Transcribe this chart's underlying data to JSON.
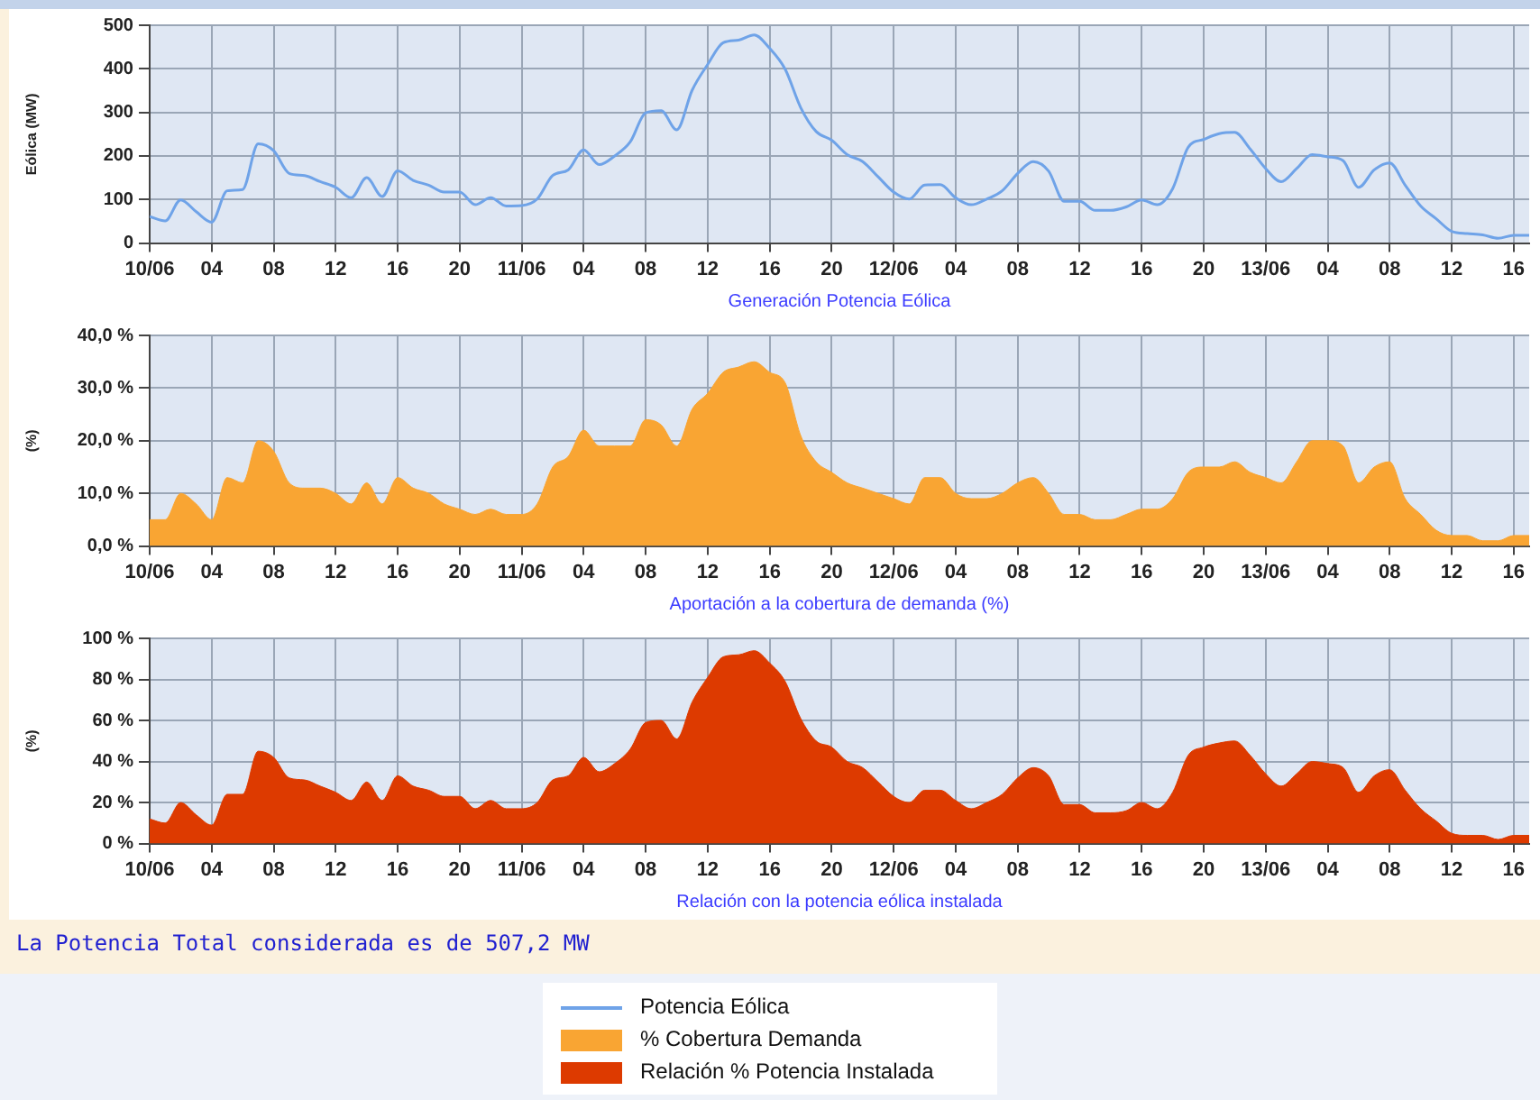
{
  "chart_data": [
    {
      "type": "line",
      "xlabel": "Generación Potencia Eólica",
      "ylabel": "Eólica (MW)",
      "x": [
        "--06-10T00:00",
        "--06-10T01:00",
        "--06-10T02:00",
        "--06-10T03:00",
        "--06-10T04:00",
        "--06-10T05:00",
        "--06-10T06:00",
        "--06-10T07:00",
        "--06-10T08:00",
        "--06-10T09:00",
        "--06-10T10:00",
        "--06-10T11:00",
        "--06-10T12:00",
        "--06-10T13:00",
        "--06-10T14:00",
        "--06-10T15:00",
        "--06-10T16:00",
        "--06-10T17:00",
        "--06-10T18:00",
        "--06-10T19:00",
        "--06-10T20:00",
        "--06-10T21:00",
        "--06-10T22:00",
        "--06-10T23:00",
        "--06-11T00:00",
        "--06-11T01:00",
        "--06-11T02:00",
        "--06-11T03:00",
        "--06-11T04:00",
        "--06-11T05:00",
        "--06-11T06:00",
        "--06-11T07:00",
        "--06-11T08:00",
        "--06-11T09:00",
        "--06-11T10:00",
        "--06-11T11:00",
        "--06-11T12:00",
        "--06-11T13:00",
        "--06-11T14:00",
        "--06-11T15:00",
        "--06-11T16:00",
        "--06-11T17:00",
        "--06-11T18:00",
        "--06-11T19:00",
        "--06-11T20:00",
        "--06-11T21:00",
        "--06-11T22:00",
        "--06-11T23:00",
        "--06-12T00:00",
        "--06-12T01:00",
        "--06-12T02:00",
        "--06-12T03:00",
        "--06-12T04:00",
        "--06-12T05:00",
        "--06-12T06:00",
        "--06-12T07:00",
        "--06-12T08:00",
        "--06-12T09:00",
        "--06-12T10:00",
        "--06-12T11:00",
        "--06-12T12:00",
        "--06-12T13:00",
        "--06-12T14:00",
        "--06-12T15:00",
        "--06-12T16:00",
        "--06-12T17:00",
        "--06-12T18:00",
        "--06-12T19:00",
        "--06-12T20:00",
        "--06-12T21:00",
        "--06-12T22:00",
        "--06-12T23:00",
        "--06-13T00:00",
        "--06-13T01:00",
        "--06-13T02:00",
        "--06-13T03:00",
        "--06-13T04:00",
        "--06-13T05:00",
        "--06-13T06:00",
        "--06-13T07:00",
        "--06-13T08:00",
        "--06-13T09:00",
        "--06-13T10:00",
        "--06-13T11:00",
        "--06-13T12:00",
        "--06-13T13:00",
        "--06-13T14:00",
        "--06-13T15:00",
        "--06-13T16:00",
        "--06-13T17:00"
      ],
      "series": [
        {
          "name": "Potencia Eólica",
          "color": "#6fa3e8",
          "values": [
            61,
            51,
            99,
            72,
            48,
            120,
            123,
            228,
            212,
            160,
            155,
            141,
            128,
            104,
            150,
            107,
            166,
            144,
            133,
            117,
            117,
            88,
            104,
            85,
            86,
            101,
            155,
            168,
            214,
            180,
            200,
            232,
            299,
            304,
            260,
            351,
            410,
            460,
            466,
            478,
            447,
            399,
            311,
            256,
            236,
            203,
            187,
            152,
            117,
            101,
            133,
            134,
            104,
            88,
            101,
            120,
            160,
            187,
            165,
            96,
            96,
            75,
            75,
            83,
            99,
            88,
            125,
            220,
            238,
            251,
            254,
            216,
            171,
            141,
            171,
            203,
            198,
            189,
            128,
            168,
            184,
            133,
            85,
            56,
            27,
            22,
            19,
            11,
            18,
            18
          ]
        }
      ],
      "xlim": [
        "--06-10T00:00",
        "--06-13T17:00"
      ],
      "xticks": [
        {
          "value": "--06-10T00:00",
          "label": "10/06"
        },
        {
          "value": "--06-10T04:00",
          "label": "04"
        },
        {
          "value": "--06-10T08:00",
          "label": "08"
        },
        {
          "value": "--06-10T12:00",
          "label": "12"
        },
        {
          "value": "--06-10T16:00",
          "label": "16"
        },
        {
          "value": "--06-10T20:00",
          "label": "20"
        },
        {
          "value": "--06-11T00:00",
          "label": "11/06"
        },
        {
          "value": "--06-11T04:00",
          "label": "04"
        },
        {
          "value": "--06-11T08:00",
          "label": "08"
        },
        {
          "value": "--06-11T12:00",
          "label": "12"
        },
        {
          "value": "--06-11T16:00",
          "label": "16"
        },
        {
          "value": "--06-11T20:00",
          "label": "20"
        },
        {
          "value": "--06-12T00:00",
          "label": "12/06"
        },
        {
          "value": "--06-12T04:00",
          "label": "04"
        },
        {
          "value": "--06-12T08:00",
          "label": "08"
        },
        {
          "value": "--06-12T12:00",
          "label": "12"
        },
        {
          "value": "--06-12T16:00",
          "label": "16"
        },
        {
          "value": "--06-12T20:00",
          "label": "20"
        },
        {
          "value": "--06-13T00:00",
          "label": "13/06"
        },
        {
          "value": "--06-13T04:00",
          "label": "04"
        },
        {
          "value": "--06-13T08:00",
          "label": "08"
        },
        {
          "value": "--06-13T12:00",
          "label": "12"
        },
        {
          "value": "--06-13T16:00",
          "label": "16"
        }
      ],
      "ylim": [
        0,
        500
      ],
      "yticks": [
        0,
        100,
        200,
        300,
        400,
        500
      ],
      "grid": true,
      "legend": "bottom"
    },
    {
      "type": "area",
      "xlabel": "Aportación a la cobertura de demanda (%)",
      "ylabel": "(%)",
      "x": [
        "--06-10T00:00",
        "--06-10T01:00",
        "--06-10T02:00",
        "--06-10T03:00",
        "--06-10T04:00",
        "--06-10T05:00",
        "--06-10T06:00",
        "--06-10T07:00",
        "--06-10T08:00",
        "--06-10T09:00",
        "--06-10T10:00",
        "--06-10T11:00",
        "--06-10T12:00",
        "--06-10T13:00",
        "--06-10T14:00",
        "--06-10T15:00",
        "--06-10T16:00",
        "--06-10T17:00",
        "--06-10T18:00",
        "--06-10T19:00",
        "--06-10T20:00",
        "--06-10T21:00",
        "--06-10T22:00",
        "--06-10T23:00",
        "--06-11T00:00",
        "--06-11T01:00",
        "--06-11T02:00",
        "--06-11T03:00",
        "--06-11T04:00",
        "--06-11T05:00",
        "--06-11T06:00",
        "--06-11T07:00",
        "--06-11T08:00",
        "--06-11T09:00",
        "--06-11T10:00",
        "--06-11T11:00",
        "--06-11T12:00",
        "--06-11T13:00",
        "--06-11T14:00",
        "--06-11T15:00",
        "--06-11T16:00",
        "--06-11T17:00",
        "--06-11T18:00",
        "--06-11T19:00",
        "--06-11T20:00",
        "--06-11T21:00",
        "--06-11T22:00",
        "--06-11T23:00",
        "--06-12T00:00",
        "--06-12T01:00",
        "--06-12T02:00",
        "--06-12T03:00",
        "--06-12T04:00",
        "--06-12T05:00",
        "--06-12T06:00",
        "--06-12T07:00",
        "--06-12T08:00",
        "--06-12T09:00",
        "--06-12T10:00",
        "--06-12T11:00",
        "--06-12T12:00",
        "--06-12T13:00",
        "--06-12T14:00",
        "--06-12T15:00",
        "--06-12T16:00",
        "--06-12T17:00",
        "--06-12T18:00",
        "--06-12T19:00",
        "--06-12T20:00",
        "--06-12T21:00",
        "--06-12T22:00",
        "--06-12T23:00",
        "--06-13T00:00",
        "--06-13T01:00",
        "--06-13T02:00",
        "--06-13T03:00",
        "--06-13T04:00",
        "--06-13T05:00",
        "--06-13T06:00",
        "--06-13T07:00",
        "--06-13T08:00",
        "--06-13T09:00",
        "--06-13T10:00",
        "--06-13T11:00",
        "--06-13T12:00",
        "--06-13T13:00",
        "--06-13T14:00",
        "--06-13T15:00",
        "--06-13T16:00",
        "--06-13T17:00"
      ],
      "series": [
        {
          "name": "% Cobertura Demanda",
          "color": "#f9a533",
          "values": [
            5,
            5,
            10,
            8,
            5,
            13,
            12,
            20,
            18,
            12,
            11,
            11,
            10,
            8,
            12,
            8,
            13,
            11,
            10,
            8,
            7,
            6,
            7,
            6,
            6,
            8,
            15,
            17,
            22,
            19,
            19,
            19,
            24,
            23,
            19,
            26,
            29,
            33,
            34,
            35,
            33,
            31,
            21,
            16,
            14,
            12,
            11,
            10,
            9,
            8,
            13,
            13,
            10,
            9,
            9,
            10,
            12,
            13,
            10,
            6,
            6,
            5,
            5,
            6,
            7,
            7,
            9,
            14,
            15,
            15,
            16,
            14,
            13,
            12,
            16,
            20,
            20,
            19,
            12,
            15,
            16,
            9,
            6,
            3,
            2,
            2,
            1,
            1,
            2,
            2
          ]
        }
      ],
      "xlim": [
        "--06-10T00:00",
        "--06-13T17:00"
      ],
      "xticks": [
        {
          "value": "--06-10T00:00",
          "label": "10/06"
        },
        {
          "value": "--06-10T04:00",
          "label": "04"
        },
        {
          "value": "--06-10T08:00",
          "label": "08"
        },
        {
          "value": "--06-10T12:00",
          "label": "12"
        },
        {
          "value": "--06-10T16:00",
          "label": "16"
        },
        {
          "value": "--06-10T20:00",
          "label": "20"
        },
        {
          "value": "--06-11T00:00",
          "label": "11/06"
        },
        {
          "value": "--06-11T04:00",
          "label": "04"
        },
        {
          "value": "--06-11T08:00",
          "label": "08"
        },
        {
          "value": "--06-11T12:00",
          "label": "12"
        },
        {
          "value": "--06-11T16:00",
          "label": "16"
        },
        {
          "value": "--06-11T20:00",
          "label": "20"
        },
        {
          "value": "--06-12T00:00",
          "label": "12/06"
        },
        {
          "value": "--06-12T04:00",
          "label": "04"
        },
        {
          "value": "--06-12T08:00",
          "label": "08"
        },
        {
          "value": "--06-12T12:00",
          "label": "12"
        },
        {
          "value": "--06-12T16:00",
          "label": "16"
        },
        {
          "value": "--06-12T20:00",
          "label": "20"
        },
        {
          "value": "--06-13T00:00",
          "label": "13/06"
        },
        {
          "value": "--06-13T04:00",
          "label": "04"
        },
        {
          "value": "--06-13T08:00",
          "label": "08"
        },
        {
          "value": "--06-13T12:00",
          "label": "12"
        },
        {
          "value": "--06-13T16:00",
          "label": "16"
        }
      ],
      "ylim": [
        0,
        40
      ],
      "yticks": [
        {
          "value": 0,
          "label": "0,0 %"
        },
        {
          "value": 10,
          "label": "10,0 %"
        },
        {
          "value": 20,
          "label": "20,0 %"
        },
        {
          "value": 30,
          "label": "30,0 %"
        },
        {
          "value": 40,
          "label": "40,0 %"
        }
      ],
      "grid": true,
      "legend": "bottom"
    },
    {
      "type": "area",
      "xlabel": "Relación con la potencia eólica instalada",
      "ylabel": "(%)",
      "annotations": [
        "La Potencia Total considerada es de 507,2 MW"
      ],
      "x": [
        "--06-10T00:00",
        "--06-10T01:00",
        "--06-10T02:00",
        "--06-10T03:00",
        "--06-10T04:00",
        "--06-10T05:00",
        "--06-10T06:00",
        "--06-10T07:00",
        "--06-10T08:00",
        "--06-10T09:00",
        "--06-10T10:00",
        "--06-10T11:00",
        "--06-10T12:00",
        "--06-10T13:00",
        "--06-10T14:00",
        "--06-10T15:00",
        "--06-10T16:00",
        "--06-10T17:00",
        "--06-10T18:00",
        "--06-10T19:00",
        "--06-10T20:00",
        "--06-10T21:00",
        "--06-10T22:00",
        "--06-10T23:00",
        "--06-11T00:00",
        "--06-11T01:00",
        "--06-11T02:00",
        "--06-11T03:00",
        "--06-11T04:00",
        "--06-11T05:00",
        "--06-11T06:00",
        "--06-11T07:00",
        "--06-11T08:00",
        "--06-11T09:00",
        "--06-11T10:00",
        "--06-11T11:00",
        "--06-11T12:00",
        "--06-11T13:00",
        "--06-11T14:00",
        "--06-11T15:00",
        "--06-11T16:00",
        "--06-11T17:00",
        "--06-11T18:00",
        "--06-11T19:00",
        "--06-11T20:00",
        "--06-11T21:00",
        "--06-11T22:00",
        "--06-11T23:00",
        "--06-12T00:00",
        "--06-12T01:00",
        "--06-12T02:00",
        "--06-12T03:00",
        "--06-12T04:00",
        "--06-12T05:00",
        "--06-12T06:00",
        "--06-12T07:00",
        "--06-12T08:00",
        "--06-12T09:00",
        "--06-12T10:00",
        "--06-12T11:00",
        "--06-12T12:00",
        "--06-12T13:00",
        "--06-12T14:00",
        "--06-12T15:00",
        "--06-12T16:00",
        "--06-12T17:00",
        "--06-12T18:00",
        "--06-12T19:00",
        "--06-12T20:00",
        "--06-12T21:00",
        "--06-12T22:00",
        "--06-12T23:00",
        "--06-13T00:00",
        "--06-13T01:00",
        "--06-13T02:00",
        "--06-13T03:00",
        "--06-13T04:00",
        "--06-13T05:00",
        "--06-13T06:00",
        "--06-13T07:00",
        "--06-13T08:00",
        "--06-13T09:00",
        "--06-13T10:00",
        "--06-13T11:00",
        "--06-13T12:00",
        "--06-13T13:00",
        "--06-13T14:00",
        "--06-13T15:00",
        "--06-13T16:00",
        "--06-13T17:00"
      ],
      "series": [
        {
          "name": "Relación % Potencia Instalada",
          "color": "#dd3a00",
          "values": [
            12,
            10,
            20,
            14,
            9,
            24,
            24,
            45,
            42,
            32,
            31,
            28,
            25,
            21,
            30,
            21,
            33,
            28,
            26,
            23,
            23,
            17,
            21,
            17,
            17,
            20,
            31,
            33,
            42,
            35,
            39,
            46,
            59,
            60,
            51,
            69,
            81,
            91,
            92,
            94,
            88,
            79,
            61,
            50,
            47,
            40,
            37,
            30,
            23,
            20,
            26,
            26,
            21,
            17,
            20,
            24,
            32,
            37,
            33,
            19,
            19,
            15,
            15,
            16,
            20,
            17,
            25,
            43,
            47,
            49,
            50,
            43,
            34,
            28,
            34,
            40,
            39,
            37,
            25,
            33,
            36,
            26,
            17,
            11,
            5,
            4,
            4,
            2,
            4,
            4
          ]
        }
      ],
      "xlim": [
        "--06-10T00:00",
        "--06-13T17:00"
      ],
      "xticks": [
        {
          "value": "--06-10T00:00",
          "label": "10/06"
        },
        {
          "value": "--06-10T04:00",
          "label": "04"
        },
        {
          "value": "--06-10T08:00",
          "label": "08"
        },
        {
          "value": "--06-10T12:00",
          "label": "12"
        },
        {
          "value": "--06-10T16:00",
          "label": "16"
        },
        {
          "value": "--06-10T20:00",
          "label": "20"
        },
        {
          "value": "--06-11T00:00",
          "label": "11/06"
        },
        {
          "value": "--06-11T04:00",
          "label": "04"
        },
        {
          "value": "--06-11T08:00",
          "label": "08"
        },
        {
          "value": "--06-11T12:00",
          "label": "12"
        },
        {
          "value": "--06-11T16:00",
          "label": "16"
        },
        {
          "value": "--06-11T20:00",
          "label": "20"
        },
        {
          "value": "--06-12T00:00",
          "label": "12/06"
        },
        {
          "value": "--06-12T04:00",
          "label": "04"
        },
        {
          "value": "--06-12T08:00",
          "label": "08"
        },
        {
          "value": "--06-12T12:00",
          "label": "12"
        },
        {
          "value": "--06-12T16:00",
          "label": "16"
        },
        {
          "value": "--06-12T20:00",
          "label": "20"
        },
        {
          "value": "--06-13T00:00",
          "label": "13/06"
        },
        {
          "value": "--06-13T04:00",
          "label": "04"
        },
        {
          "value": "--06-13T08:00",
          "label": "08"
        },
        {
          "value": "--06-13T12:00",
          "label": "12"
        },
        {
          "value": "--06-13T16:00",
          "label": "16"
        }
      ],
      "ylim": [
        0,
        100
      ],
      "yticks": [
        {
          "value": 0,
          "label": "0 %"
        },
        {
          "value": 20,
          "label": "20 %"
        },
        {
          "value": 40,
          "label": "40 %"
        },
        {
          "value": 60,
          "label": "60 %"
        },
        {
          "value": 80,
          "label": "80 %"
        },
        {
          "value": 100,
          "label": "100 %"
        }
      ],
      "grid": true,
      "legend": "bottom"
    }
  ]
}
